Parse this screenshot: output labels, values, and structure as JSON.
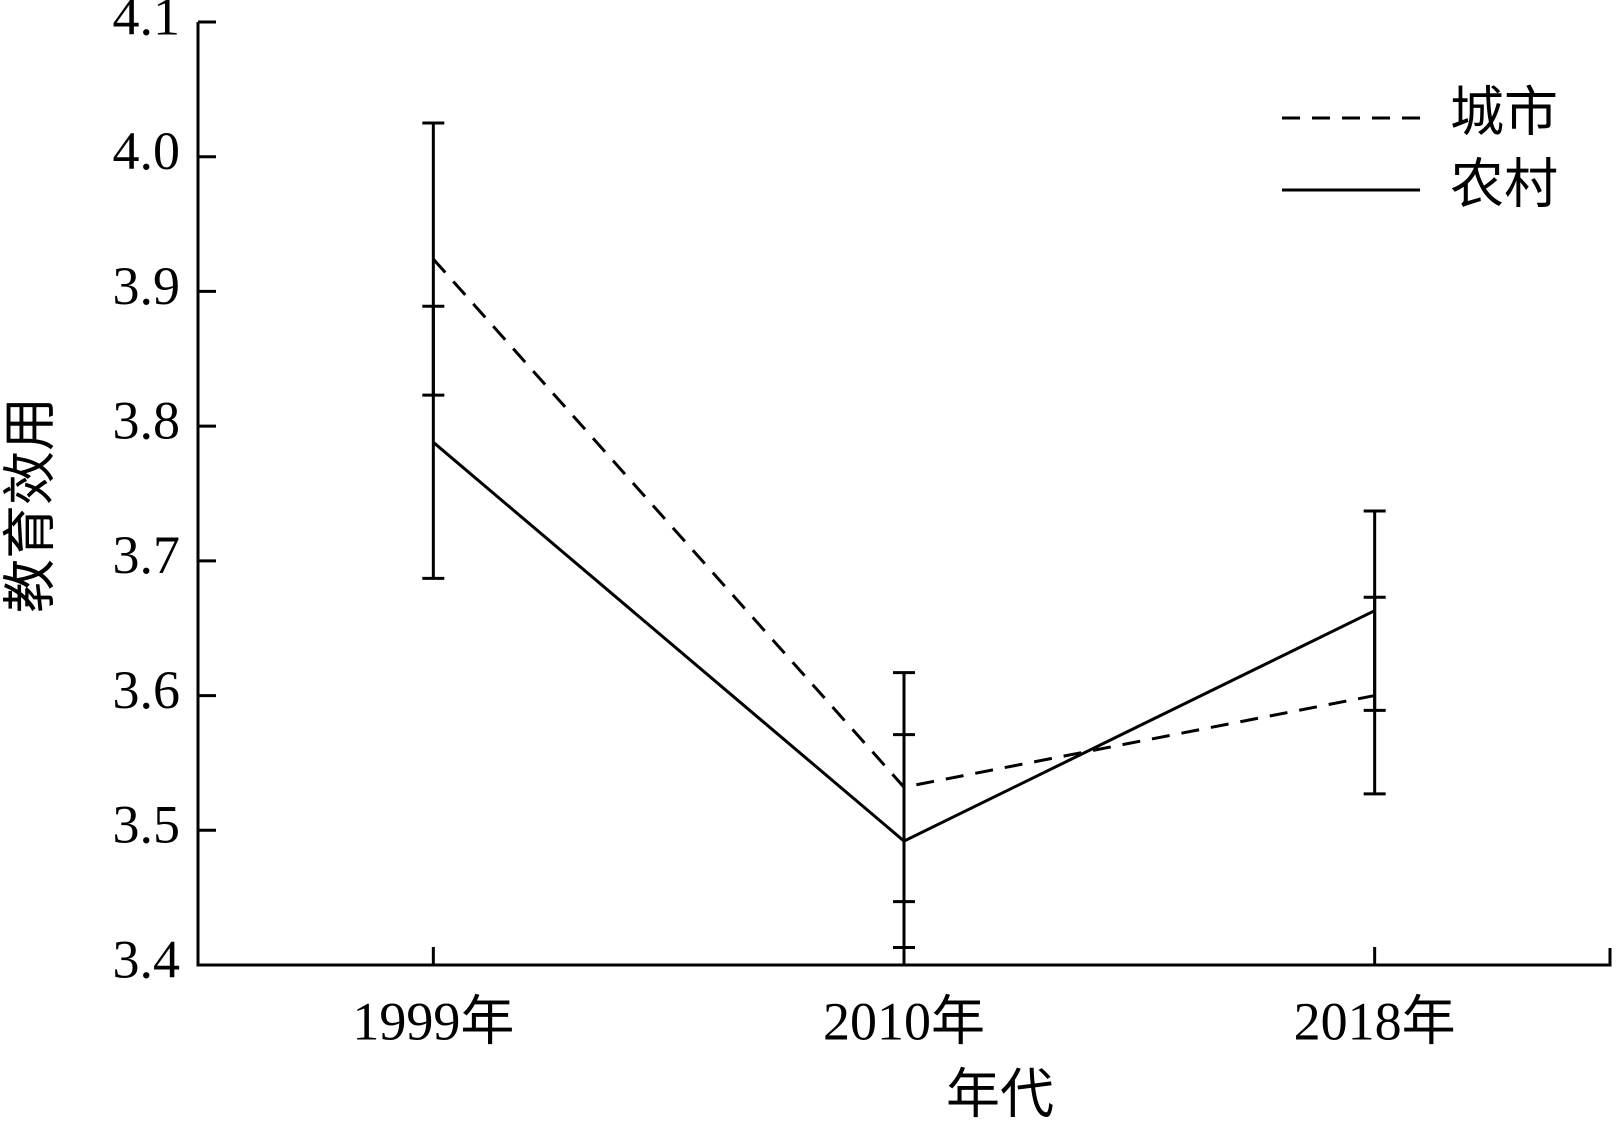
{
  "chart_data": {
    "type": "line",
    "x_label": "年代",
    "y_label": "教育效用",
    "categories": [
      "1999年",
      "2010年",
      "2018年"
    ],
    "series": [
      {
        "name": "城市",
        "color": "#000000",
        "dash": true,
        "values": [
          3.924,
          3.532,
          3.6
        ],
        "errors": [
          0.101,
          0.085,
          0.073
        ]
      },
      {
        "name": "农村",
        "color": "#000000",
        "dash": false,
        "values": [
          3.788,
          3.492,
          3.663
        ],
        "errors": [
          0.101,
          0.079,
          0.074
        ]
      }
    ],
    "ylim": [
      3.4,
      4.1
    ],
    "yticks": [
      3.4,
      3.5,
      3.6,
      3.7,
      3.8,
      3.9,
      {
        "value": 4.0,
        "label": "4.0"
      },
      4.1
    ],
    "legend": "upper right"
  }
}
